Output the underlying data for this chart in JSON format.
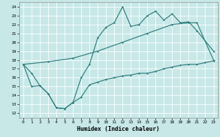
{
  "xlabel": "Humidex (Indice chaleur)",
  "bg_color": "#c8e8e8",
  "grid_color": "#ffffff",
  "line_color": "#2d7d7d",
  "xlim": [
    -0.5,
    23.5
  ],
  "ylim": [
    11.5,
    24.5
  ],
  "yticks": [
    12,
    13,
    14,
    15,
    16,
    17,
    18,
    19,
    20,
    21,
    22,
    23,
    24
  ],
  "xticks": [
    0,
    1,
    2,
    3,
    4,
    5,
    6,
    7,
    8,
    9,
    10,
    11,
    12,
    13,
    14,
    15,
    16,
    17,
    18,
    19,
    20,
    21,
    22,
    23
  ],
  "curve_top_x": [
    0,
    1,
    2,
    3,
    4,
    5,
    6,
    7,
    8,
    9,
    10,
    11,
    12,
    13,
    14,
    15,
    16,
    17,
    18,
    19,
    20,
    21,
    23
  ],
  "curve_top_y": [
    17.5,
    16.5,
    15.1,
    14.2,
    12.6,
    12.5,
    13.2,
    16.0,
    17.5,
    20.5,
    21.7,
    22.2,
    24.0,
    21.8,
    22.0,
    23.0,
    23.5,
    22.5,
    23.2,
    22.2,
    22.3,
    21.3,
    19.0
  ],
  "curve_mid_x": [
    0,
    3,
    6,
    9,
    12,
    15,
    18,
    20,
    21,
    23
  ],
  "curve_mid_y": [
    17.5,
    17.8,
    18.2,
    19.0,
    20.0,
    21.0,
    22.0,
    22.2,
    22.2,
    18.0
  ],
  "curve_bot_x": [
    0,
    1,
    2,
    3,
    4,
    5,
    6,
    7,
    8,
    9,
    10,
    11,
    12,
    13,
    14,
    15,
    16,
    17,
    18,
    19,
    20,
    21,
    22,
    23
  ],
  "curve_bot_y": [
    17.5,
    15.0,
    15.1,
    14.2,
    12.6,
    12.5,
    13.2,
    13.8,
    15.2,
    15.5,
    15.8,
    16.0,
    16.2,
    16.3,
    16.5,
    16.5,
    16.7,
    17.0,
    17.2,
    17.4,
    17.5,
    17.5,
    17.7,
    17.9
  ]
}
